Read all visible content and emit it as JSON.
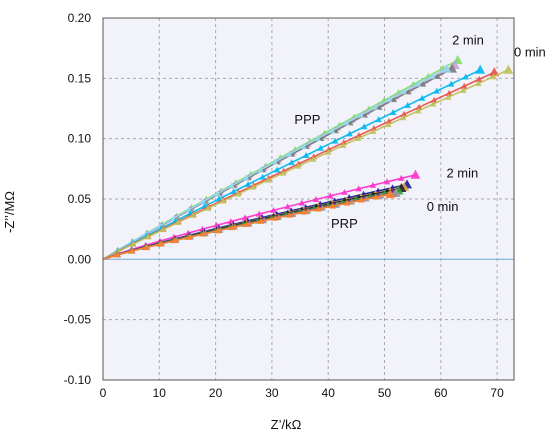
{
  "chart_data": {
    "type": "line",
    "title": "",
    "xlabel": "Z’/kΩ",
    "ylabel": "-Z’’/MΩ",
    "xlim": [
      0,
      73
    ],
    "ylim": [
      -0.1,
      0.2
    ],
    "x_ticks": [
      "0",
      "10",
      "20",
      "30",
      "40",
      "50",
      "60",
      "70"
    ],
    "y_ticks": [
      "0.20",
      "0.15",
      "0.10",
      "0.05",
      "0.00",
      "-0.05",
      "-0.10"
    ],
    "grid": true,
    "legend": "none",
    "plot_background": "#f2f2fb",
    "zero_line_color": "#7fb3d5",
    "groups": [
      {
        "label": "PPP",
        "series": [
          {
            "color": "#7dde6a",
            "end": [
              63,
              0.165
            ],
            "steps": 24
          },
          {
            "color": "#c9a0dc",
            "end": [
              62.5,
              0.161
            ],
            "steps": 24
          },
          {
            "color": "#7a7a7a",
            "end": [
              62,
              0.158
            ],
            "steps": 24
          },
          {
            "color": "#9ad6ee",
            "end": [
              61,
              0.158
            ],
            "steps": 24
          },
          {
            "color": "#00b8f0",
            "end": [
              67,
              0.157
            ],
            "steps": 26
          },
          {
            "color": "#e8524a",
            "end": [
              69.5,
              0.155
            ],
            "steps": 26
          },
          {
            "color": "#c0c05a",
            "end": [
              72,
              0.157
            ],
            "steps": 27
          }
        ]
      },
      {
        "label": "PRP",
        "series": [
          {
            "color": "#ff33cc",
            "end": [
              55.5,
              0.07
            ],
            "steps": 22
          },
          {
            "color": "#1a1aa0",
            "end": [
              54,
              0.062
            ],
            "steps": 21
          },
          {
            "color": "#d9a34a",
            "end": [
              53.5,
              0.06
            ],
            "steps": 21
          },
          {
            "color": "#222222",
            "end": [
              53,
              0.059
            ],
            "steps": 21
          },
          {
            "color": "#3f9f3f",
            "end": [
              52.5,
              0.057
            ],
            "steps": 21
          },
          {
            "color": "#6a2a9a",
            "end": [
              51.5,
              0.055
            ],
            "steps": 20
          },
          {
            "color": "#9a9a9a",
            "end": [
              52,
              0.055
            ],
            "steps": 20
          },
          {
            "color": "#ff7f2a",
            "end": [
              51,
              0.054
            ],
            "steps": 20
          }
        ]
      }
    ],
    "annotations": [
      {
        "text": "2 min",
        "x": 62,
        "y": 0.178
      },
      {
        "text": "0 min",
        "x": 73,
        "y": 0.168
      },
      {
        "text": "PPP",
        "x": 34,
        "y": 0.112
      },
      {
        "text": "2 min",
        "x": 61,
        "y": 0.068
      },
      {
        "text": "0 min",
        "x": 57.5,
        "y": 0.04
      },
      {
        "text": "PRP",
        "x": 40.5,
        "y": 0.026
      }
    ]
  }
}
